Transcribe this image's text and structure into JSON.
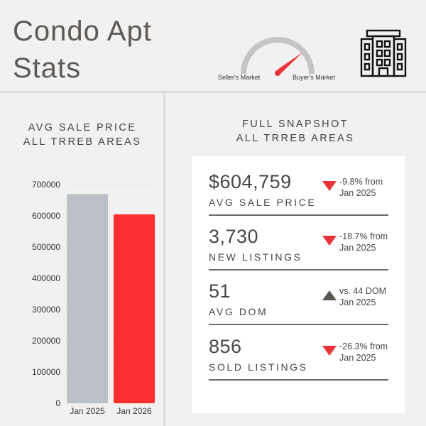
{
  "header": {
    "title_line1": "Condo Apt",
    "title_line2": "Stats",
    "gauge": {
      "left_label": "Seller's Market",
      "right_label": "Buyer's Market",
      "needle_position": "buyer-leaning"
    },
    "building_icon": "apartment-building-icon"
  },
  "left_section": {
    "heading_line1": "AVG SALE PRICE",
    "heading_line2": "ALL TRREB AREAS"
  },
  "right_section": {
    "heading_line1": "FULL SNAPSHOT",
    "heading_line2": "ALL TRREB AREAS"
  },
  "chart_data": {
    "type": "bar",
    "title": "AVG SALE PRICE ALL TRREB AREAS",
    "categories": [
      "Jan 2025",
      "Jan 2026"
    ],
    "values": [
      670000,
      604759
    ],
    "colors": [
      "#bcc1c8",
      "#fb2f2f"
    ],
    "ylim": [
      0,
      700000
    ],
    "yticks": [
      0,
      100000,
      200000,
      300000,
      400000,
      500000,
      600000,
      700000
    ],
    "ytick_labels": [
      "0",
      "100000",
      "200000",
      "300000",
      "400000",
      "500000",
      "600000",
      "700000"
    ],
    "xlabel": "",
    "ylabel": "",
    "grid": true
  },
  "stats": [
    {
      "value": "$604,759",
      "label": "AVG SALE PRICE",
      "change_line1": "-9.8% from",
      "change_line2": "Jan 2025",
      "direction": "down",
      "color": "#e8333a"
    },
    {
      "value": "3,730",
      "label": "NEW LISTINGS",
      "change_line1": "-18.7% from",
      "change_line2": "Jan 2025",
      "direction": "down",
      "color": "#e8333a"
    },
    {
      "value": "51",
      "label": "AVG DOM",
      "change_line1": "vs. 44 DOM",
      "change_line2": "Jan 2025",
      "direction": "up",
      "color": "#5b5650"
    },
    {
      "value": "856",
      "label": "SOLD LISTINGS",
      "change_line1": "-26.3% from",
      "change_line2": "Jan 2025",
      "direction": "down",
      "color": "#e8333a"
    }
  ]
}
